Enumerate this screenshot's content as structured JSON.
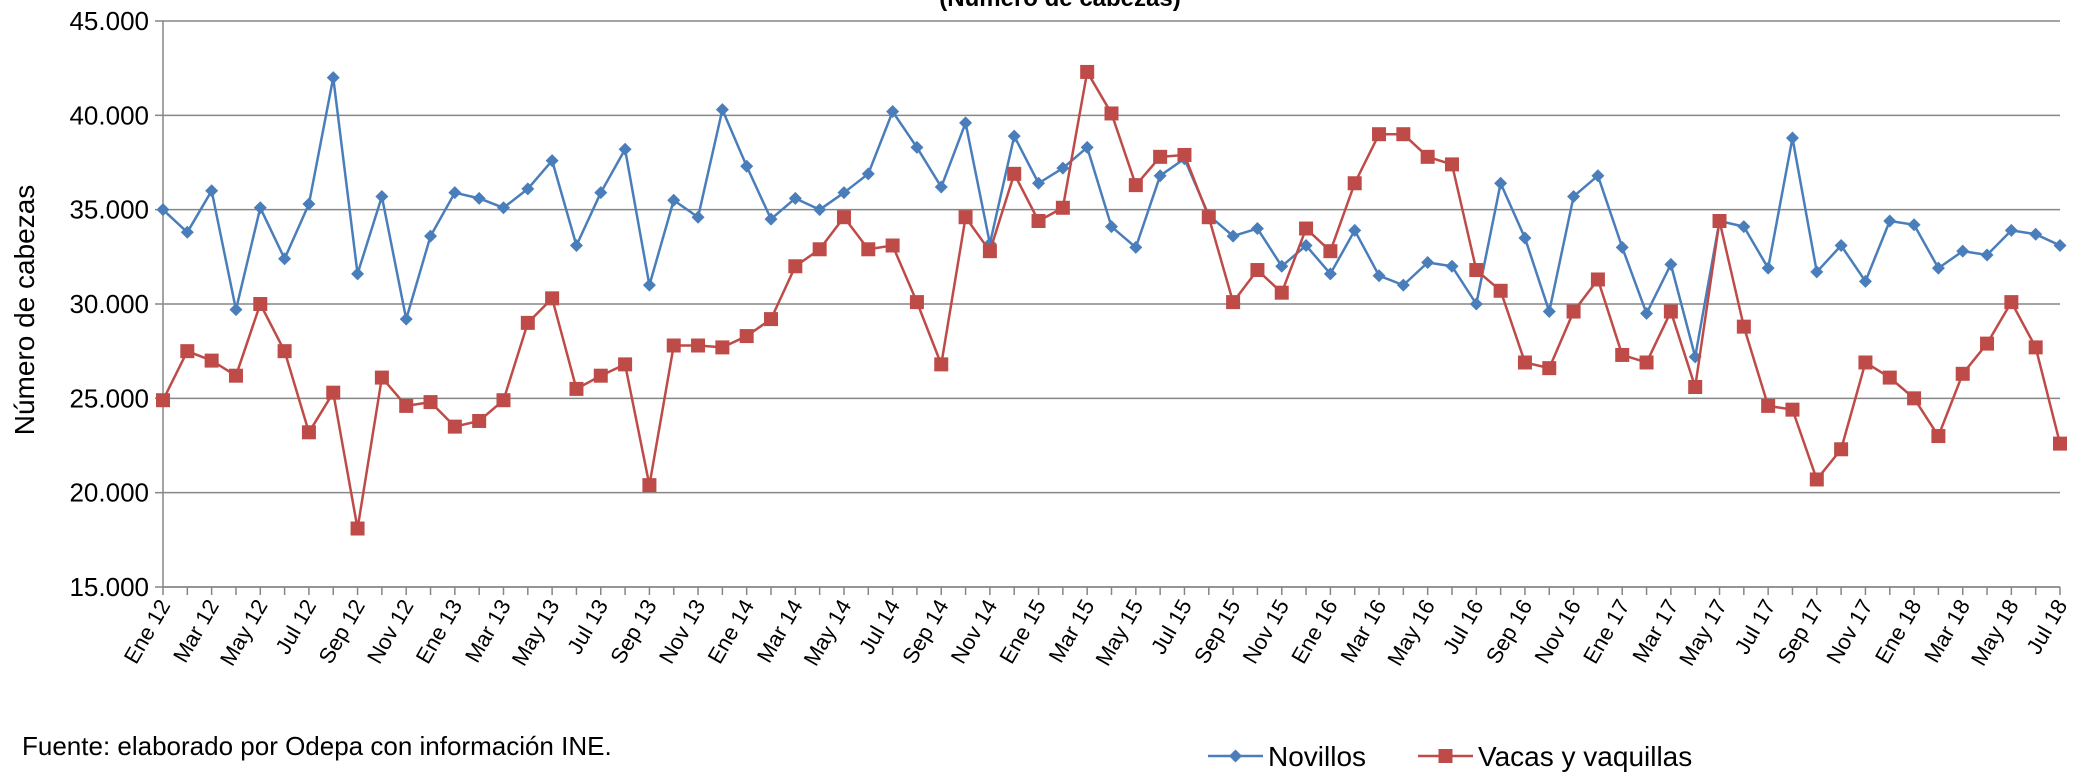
{
  "chart_data": {
    "type": "line",
    "title": "(Número de cabezas)",
    "ylabel": "Número de cabezas",
    "xlabel": "",
    "ylim": [
      15000,
      45000
    ],
    "y_ticks": [
      "15.000",
      "20.000",
      "25.000",
      "30.000",
      "35.000",
      "40.000",
      "45.000"
    ],
    "y_tick_values": [
      15000,
      20000,
      25000,
      30000,
      35000,
      40000,
      45000
    ],
    "grid": true,
    "legend_placement": "bottom-right",
    "x": [
      "Ene 12",
      "Feb 12",
      "Mar 12",
      "Abr 12",
      "May 12",
      "Jun 12",
      "Jul 12",
      "Ago 12",
      "Sep 12",
      "Oct 12",
      "Nov 12",
      "Dic 12",
      "Ene 13",
      "Feb 13",
      "Mar 13",
      "Abr 13",
      "May 13",
      "Jun 13",
      "Jul 13",
      "Ago 13",
      "Sep 13",
      "Oct 13",
      "Nov 13",
      "Dic 13",
      "Ene 14",
      "Feb 14",
      "Mar 14",
      "Abr 14",
      "May 14",
      "Jun 14",
      "Jul 14",
      "Ago 14",
      "Sep 14",
      "Oct 14",
      "Nov 14",
      "Dic 14",
      "Ene 15",
      "Feb 15",
      "Mar 15",
      "Abr 15",
      "May 15",
      "Jun 15",
      "Jul 15",
      "Ago 15",
      "Sep 15",
      "Oct 15",
      "Nov 15",
      "Dic 15",
      "Ene 16",
      "Feb 16",
      "Mar 16",
      "Abr 16",
      "May 16",
      "Jun 16",
      "Jul 16",
      "Ago 16",
      "Sep 16",
      "Oct 16",
      "Nov 16",
      "Dic 16",
      "Ene 17",
      "Feb 17",
      "Mar 17",
      "Abr 17",
      "May 17",
      "Jun 17",
      "Jul 17",
      "Ago 17",
      "Sep 17",
      "Oct 17",
      "Nov 17",
      "Dic 17",
      "Ene 18",
      "Feb 18",
      "Mar 18",
      "Abr 18",
      "May 18",
      "Jun 18",
      "Jul 18"
    ],
    "x_tick_labels": [
      "Ene 12",
      "Mar 12",
      "May 12",
      "Jul 12",
      "Sep 12",
      "Nov 12",
      "Ene 13",
      "Mar 13",
      "May 13",
      "Jul 13",
      "Sep 13",
      "Nov 13",
      "Ene 14",
      "Mar 14",
      "May 14",
      "Jul 14",
      "Sep 14",
      "Nov 14",
      "Ene 15",
      "Mar 15",
      "May 15",
      "Jul 15",
      "Sep 15",
      "Nov 15",
      "Ene 16",
      "Mar 16",
      "May 16",
      "Jul 16",
      "Sep 16",
      "Nov 16",
      "Ene 17",
      "Mar 17",
      "May 17",
      "Jul 17",
      "Sep 17",
      "Nov 17",
      "Ene 18",
      "Mar 18",
      "May 18",
      "Jul 18"
    ],
    "series": [
      {
        "name": "Novillos",
        "color": "#4a7ebb",
        "marker": "diamond",
        "values": [
          35000,
          33800,
          36000,
          29700,
          35100,
          32400,
          35300,
          42000,
          31600,
          35700,
          29200,
          33600,
          35900,
          35600,
          35100,
          36100,
          37600,
          33100,
          35900,
          38200,
          31000,
          35500,
          34600,
          40300,
          37300,
          34500,
          35600,
          35000,
          35900,
          36900,
          40200,
          38300,
          36200,
          39600,
          33200,
          38900,
          36400,
          37200,
          38300,
          34100,
          33000,
          36800,
          37700,
          34700,
          33600,
          34000,
          32000,
          33100,
          31600,
          33900,
          31500,
          31000,
          32200,
          32000,
          30000,
          36400,
          33500,
          29600,
          35700,
          36800,
          33000,
          29500,
          32100,
          27200,
          34400,
          34100,
          31900,
          38800,
          31700,
          33100,
          31200,
          34400,
          34200,
          31900,
          32800,
          32600,
          33900,
          33700,
          33100
        ]
      },
      {
        "name": "Vacas y vaquillas",
        "color": "#be4b48",
        "marker": "square",
        "values": [
          24900,
          27500,
          27000,
          26200,
          30000,
          27500,
          23200,
          25300,
          18100,
          26100,
          24600,
          24800,
          23500,
          23800,
          24900,
          29000,
          30300,
          25500,
          26200,
          26800,
          20400,
          27800,
          27800,
          27700,
          28300,
          29200,
          32000,
          32900,
          34600,
          32900,
          33100,
          30100,
          26800,
          34600,
          32800,
          36900,
          34400,
          35100,
          42300,
          40100,
          36300,
          37800,
          37900,
          34600,
          30100,
          31800,
          30600,
          34000,
          32800,
          36400,
          39000,
          39000,
          37800,
          37400,
          31800,
          30700,
          26900,
          26600,
          29600,
          31300,
          27300,
          26900,
          29600,
          25600,
          34400,
          28800,
          24600,
          24400,
          20700,
          22300,
          26900,
          26100,
          25000,
          23000,
          26300,
          27900,
          30100,
          27700,
          22600
        ]
      }
    ],
    "source": "Fuente: elaborado por Odepa con información INE."
  }
}
